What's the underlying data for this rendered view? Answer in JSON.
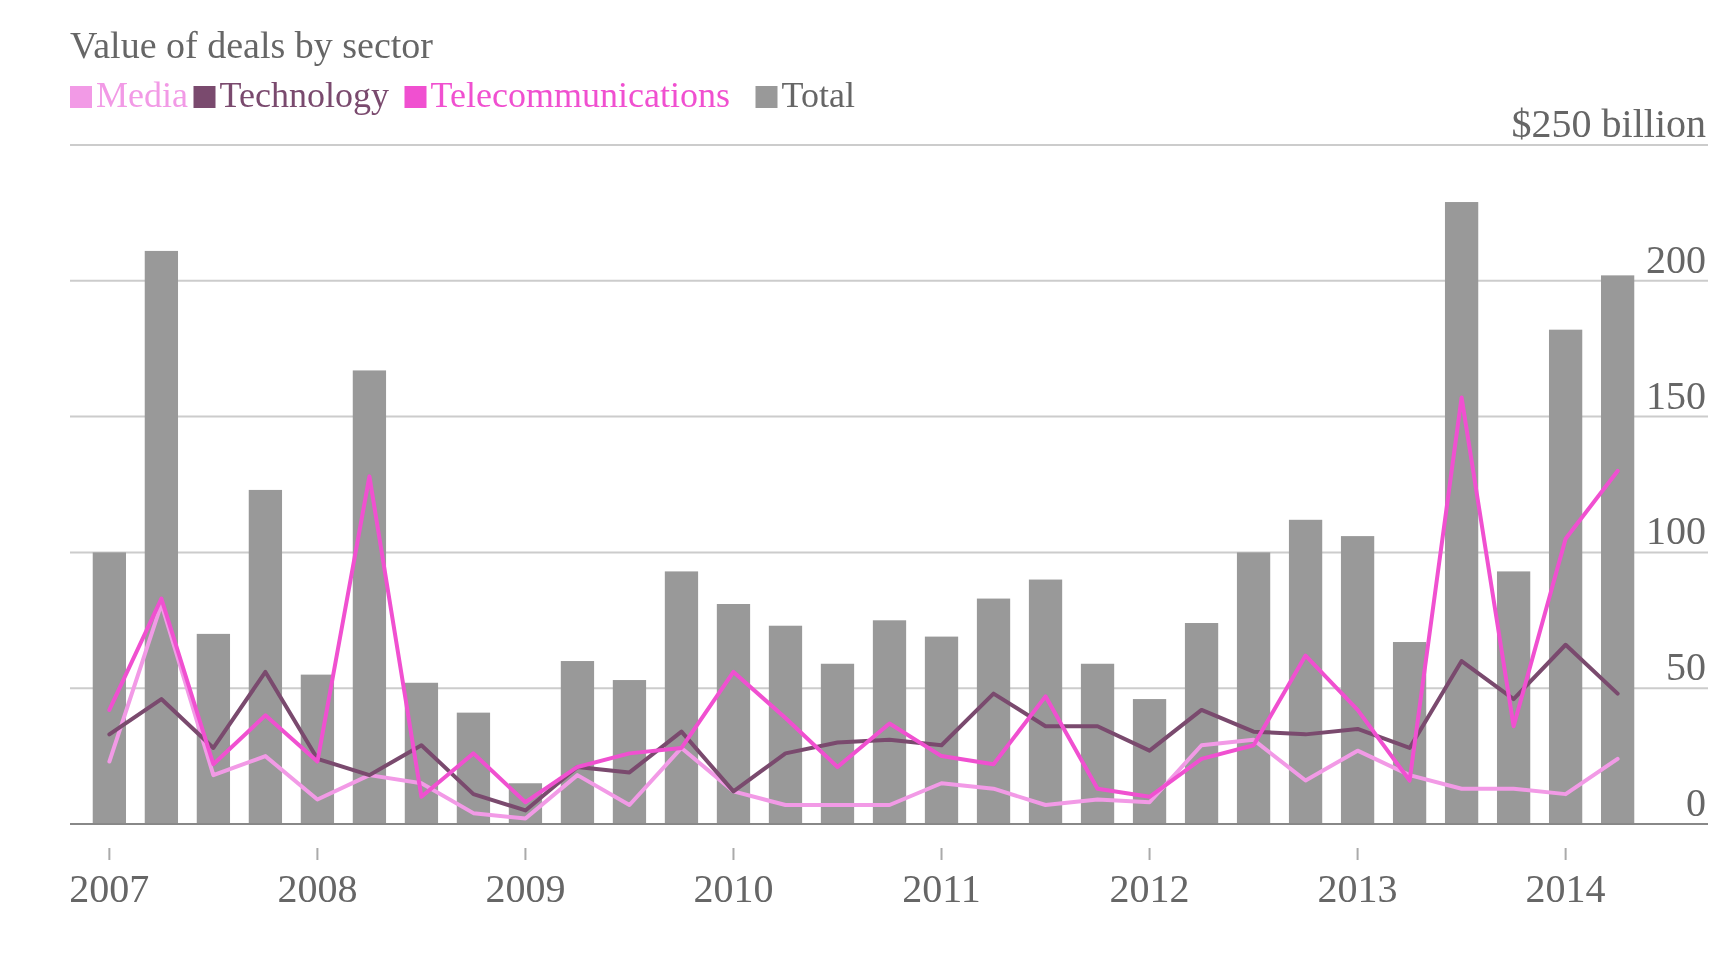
{
  "chart_data": {
    "type": "bar",
    "title": "Value of deals by sector",
    "categories": [
      "2007",
      null,
      null,
      null,
      "2008",
      null,
      null,
      null,
      "2009",
      null,
      null,
      null,
      "2010",
      null,
      null,
      null,
      "2011",
      null,
      null,
      null,
      "2012",
      null,
      null,
      null,
      "2013",
      null,
      null,
      null,
      "2014",
      null
    ],
    "series": [
      {
        "name": "Media",
        "type": "line",
        "color": "#f29ae6",
        "values": [
          23,
          81,
          18,
          25,
          9,
          18,
          15,
          4,
          2,
          18,
          7,
          28,
          12,
          7,
          7,
          7,
          15,
          13,
          7,
          9,
          8,
          29,
          31,
          16,
          27,
          18,
          13,
          13,
          11,
          24
        ]
      },
      {
        "name": "Technology",
        "type": "line",
        "color": "#7a4a6e",
        "values": [
          33,
          46,
          28,
          56,
          24,
          18,
          29,
          11,
          5,
          21,
          19,
          34,
          12,
          26,
          30,
          31,
          29,
          48,
          36,
          36,
          27,
          42,
          34,
          33,
          35,
          28,
          60,
          46,
          66,
          48
        ]
      },
      {
        "name": "Telecommunications",
        "type": "line",
        "color": "#f050d0",
        "values": [
          42,
          83,
          22,
          40,
          23,
          128,
          10,
          26,
          8,
          21,
          26,
          28,
          56,
          39,
          21,
          37,
          25,
          22,
          47,
          13,
          10,
          24,
          29,
          62,
          42,
          16,
          157,
          36,
          105,
          130
        ]
      },
      {
        "name": "Total",
        "color": "#999999",
        "values": [
          100,
          211,
          70,
          123,
          55,
          167,
          52,
          41,
          15,
          60,
          53,
          93,
          81,
          73,
          59,
          75,
          69,
          83,
          90,
          59,
          46,
          74,
          100,
          112,
          106,
          67,
          229,
          93,
          182,
          202
        ]
      }
    ],
    "ylim": [
      0,
      250
    ],
    "yticks": [
      0,
      50,
      100,
      150,
      200,
      {
        "value": 250,
        "label": "$250 billion"
      }
    ],
    "grid": "y",
    "legend": "top left"
  }
}
